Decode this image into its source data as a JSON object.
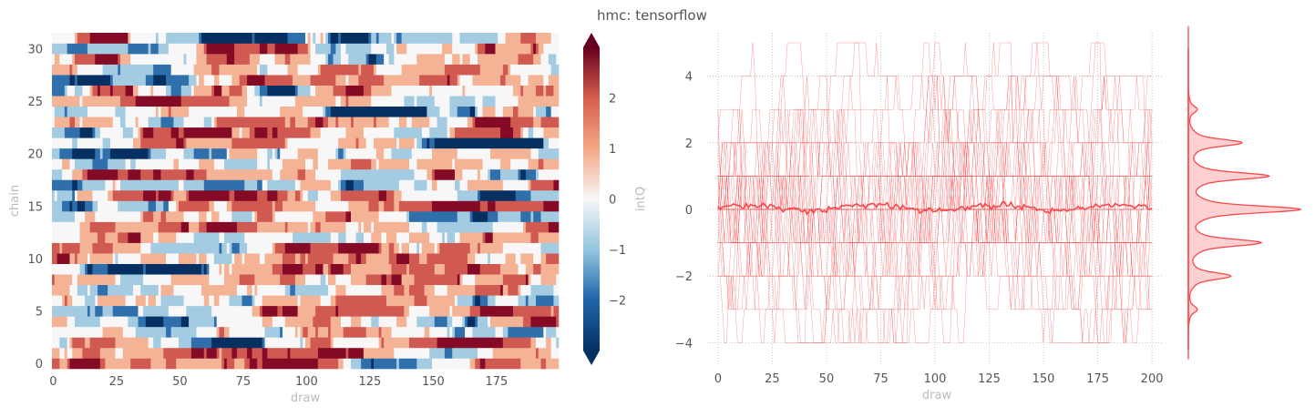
{
  "figure_title": "hmc: tensorflow",
  "chart_data": [
    {
      "type": "heatmap",
      "xlabel": "draw",
      "ylabel": "chain",
      "x_range": [
        0,
        199
      ],
      "y_range": [
        0,
        31
      ],
      "xticks": [
        0,
        25,
        50,
        75,
        100,
        125,
        150,
        175
      ],
      "yticks": [
        0,
        5,
        10,
        15,
        20,
        25,
        30
      ],
      "colorbar": {
        "label": "intQ",
        "colormap": "RdBu_r",
        "vmin": -3,
        "vmax": 3,
        "ticks": [
          -2,
          -1,
          0,
          1,
          2
        ],
        "extend": "both"
      },
      "colors": {
        "-3": "#053061",
        "-2": "#2f6fac",
        "-1": "#a3cbe2",
        "0": "#f7f7f7",
        "1": "#f5b396",
        "2": "#d05a51",
        "3": "#840a25"
      },
      "cell_values": "32 chains × 200 draws of integer topological charge (intQ) in [-3, 3]; dominant values 0 and ±1, some ±2, rare ±3"
    },
    {
      "type": "line",
      "xlabel": "draw",
      "ylabel": "",
      "xlim": [
        -5,
        205
      ],
      "ylim": [
        -4.7,
        5.3
      ],
      "xticks": [
        0,
        25,
        50,
        75,
        100,
        125,
        150,
        175,
        200
      ],
      "yticks": [
        -4,
        -2,
        0,
        2,
        4
      ],
      "grid": true,
      "color": "#f8484b",
      "series": [
        {
          "description": "32 per-chain traces of intQ across 200 draws, values in [-4, 5], stepwise integer"
        },
        {
          "description": "mean over chains, fluctuating near 0",
          "values_approx": [
            0.1,
            0.05,
            0.08,
            0.0,
            0.05,
            0.1,
            0.0,
            -0.05,
            0.0,
            0.05
          ]
        }
      ]
    },
    {
      "type": "area",
      "orientation": "vertical-kde",
      "y_range": [
        -4.5,
        5.5
      ],
      "peaks": [
        {
          "y": -2,
          "density": 0.38
        },
        {
          "y": -1,
          "density": 0.65
        },
        {
          "y": 0,
          "density": 1.0
        },
        {
          "y": 1,
          "density": 0.72
        },
        {
          "y": 2,
          "density": 0.48
        },
        {
          "y": 3,
          "density": 0.08
        },
        {
          "y": -3,
          "density": 0.08
        }
      ],
      "color": "#f8484b"
    }
  ]
}
